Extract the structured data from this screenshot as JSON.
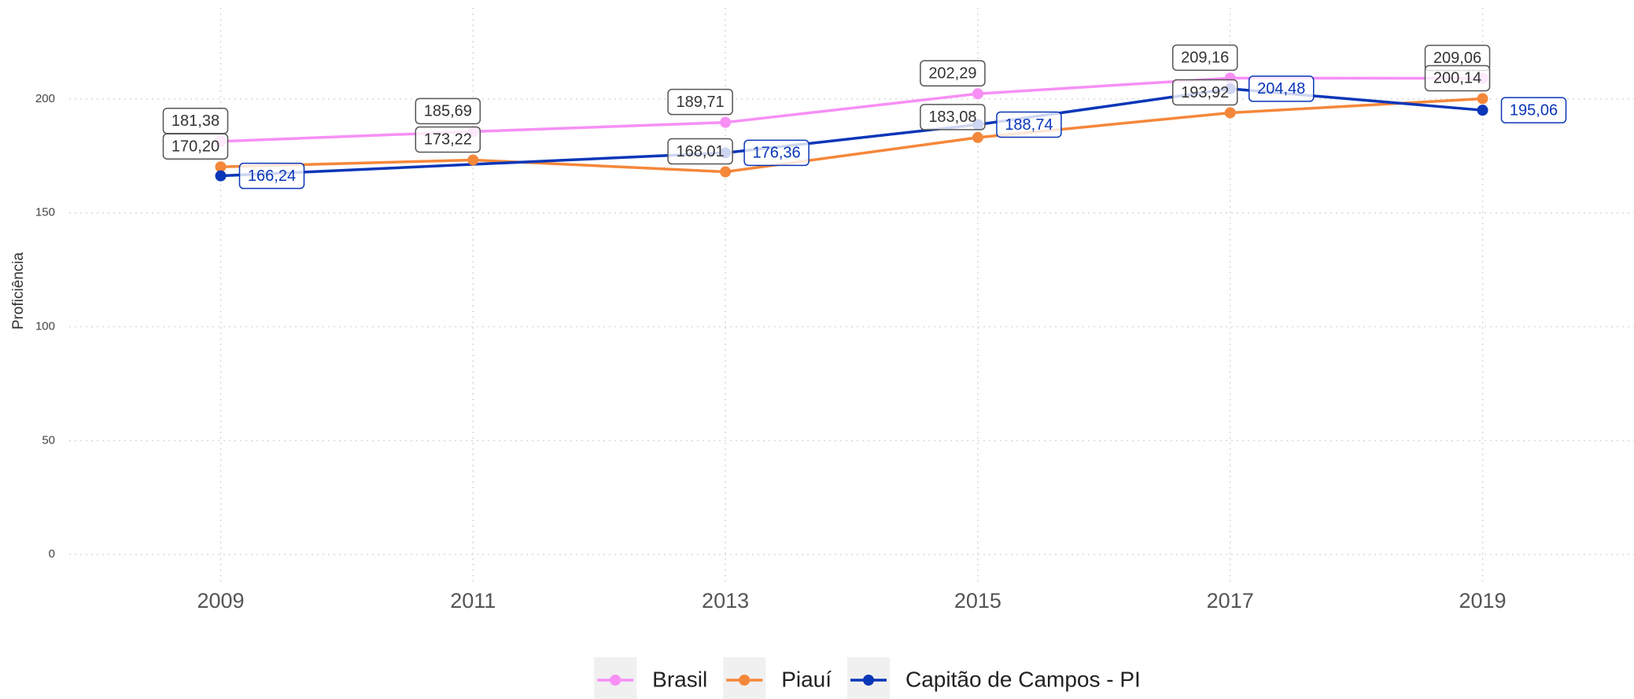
{
  "chart_data": {
    "type": "line",
    "ylabel": "Proficiência",
    "x": [
      2009,
      2011,
      2013,
      2015,
      2017,
      2019
    ],
    "xlim": [
      2007.8,
      2020.2
    ],
    "xticks": [
      2009,
      2011,
      2013,
      2015,
      2017,
      2019
    ],
    "ylim": [
      -12,
      240
    ],
    "yticks": [
      0,
      50,
      100,
      150,
      200
    ],
    "grid": true,
    "legend": "bottom",
    "series": [
      {
        "name": "Brasil",
        "color": "#f78ff5",
        "values": [
          181.38,
          185.69,
          189.71,
          202.29,
          209.16,
          209.06
        ],
        "value_labels": [
          "181,38",
          "185,69",
          "189,71",
          "202,29",
          "209,16",
          "209,06"
        ]
      },
      {
        "name": "Piauí",
        "color": "#f5873a",
        "values": [
          170.2,
          173.22,
          168.01,
          183.08,
          193.92,
          200.14
        ],
        "value_labels": [
          "170,20",
          "173,22",
          "168,01",
          "183,08",
          "193,92",
          "200,14"
        ]
      },
      {
        "name": "Capitão de Campos - PI",
        "color": "#0a36b8",
        "x": [
          2009,
          2013,
          2015,
          2017,
          2019
        ],
        "values": [
          166.24,
          176.36,
          188.74,
          204.48,
          195.06
        ],
        "value_labels": [
          "166,24",
          "176,36",
          "188,74",
          "204,48",
          "195,06"
        ]
      }
    ]
  }
}
